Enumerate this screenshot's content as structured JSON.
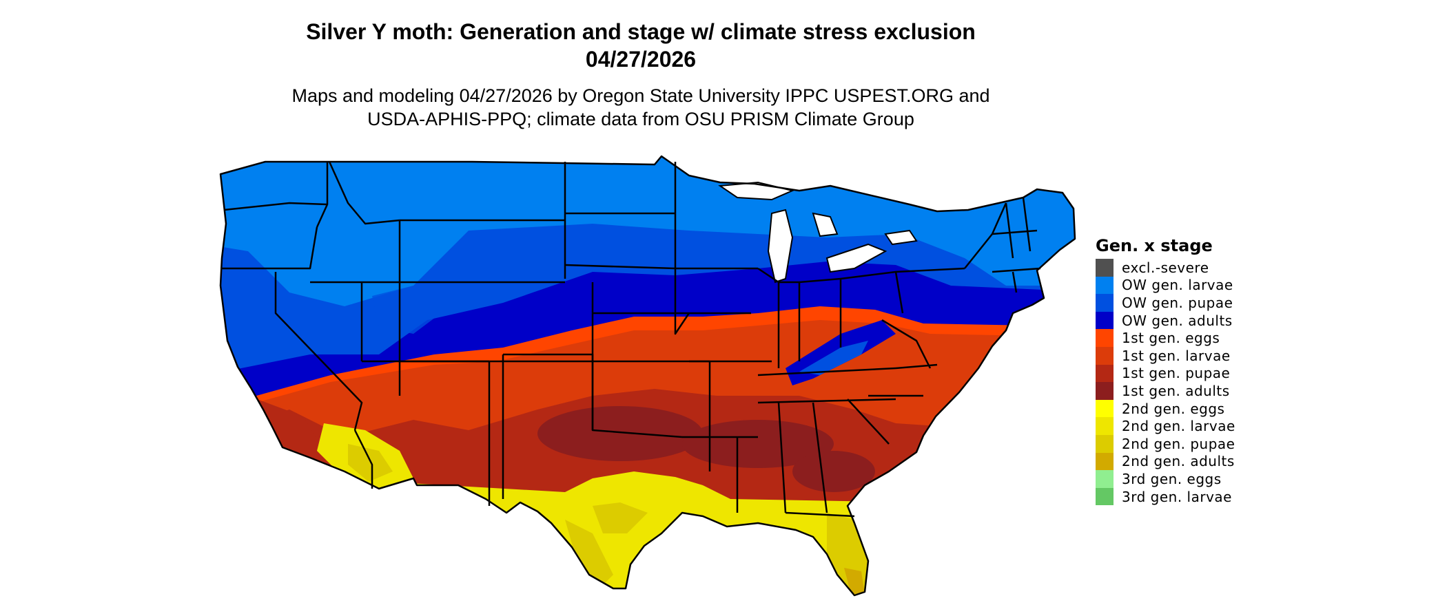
{
  "map": {
    "title_line1": "Silver Y moth: Generation and stage w/ climate stress exclusion",
    "title_line2": "04/27/2026",
    "subtitle_line1": "Maps and modeling 04/27/2026 by Oregon State University IPPC USPEST.ORG and",
    "subtitle_line2": "USDA-APHIS-PPQ; climate data from OSU PRISM Climate Group",
    "region": "Contiguous United States",
    "border_color": "#000000"
  },
  "legend": {
    "title": "Gen. x stage",
    "items": [
      {
        "label": "excl.-severe",
        "color": "#505050"
      },
      {
        "label": "OW gen. larvae",
        "color": "#0080F0"
      },
      {
        "label": "OW gen. pupae",
        "color": "#0050E0"
      },
      {
        "label": "OW gen. adults",
        "color": "#0000C8"
      },
      {
        "label": "1st gen. eggs",
        "color": "#FF4500"
      },
      {
        "label": "1st gen. larvae",
        "color": "#DC3C0A"
      },
      {
        "label": "1st gen. pupae",
        "color": "#B42814"
      },
      {
        "label": "1st gen. adults",
        "color": "#8C1E1E"
      },
      {
        "label": "2nd gen. eggs",
        "color": "#FFFF00"
      },
      {
        "label": "2nd gen. larvae",
        "color": "#EEE600"
      },
      {
        "label": "2nd gen. pupae",
        "color": "#DCCC00"
      },
      {
        "label": "2nd gen. adults",
        "color": "#D2AA00"
      },
      {
        "label": "3rd gen. eggs",
        "color": "#90EE90"
      },
      {
        "label": "3rd gen. larvae",
        "color": "#64C864"
      }
    ]
  }
}
